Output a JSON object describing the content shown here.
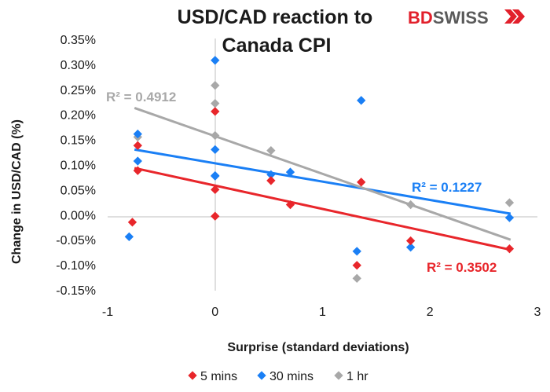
{
  "brand": {
    "bd": "BD",
    "swiss": "SWISS",
    "bd_color": "#e2202b",
    "swiss_color": "#5a5a5a"
  },
  "chart_data": {
    "type": "scatter",
    "title": "USD/CAD reaction to Canada CPI",
    "title_lines": [
      "USD/CAD reaction to",
      "Canada CPI"
    ],
    "xlabel": "Surprise (standard deviations)",
    "ylabel": "Change in USD/CAD (%)",
    "xlim": [
      -1,
      3
    ],
    "ylim": [
      -0.15,
      0.35
    ],
    "x_ticks": [
      -1,
      0,
      1,
      2,
      3
    ],
    "x_tick_labels": [
      "-1",
      "0",
      "1",
      "2",
      "3"
    ],
    "y_ticks": [
      -0.15,
      -0.1,
      -0.05,
      0.0,
      0.05,
      0.1,
      0.15,
      0.2,
      0.25,
      0.3,
      0.35
    ],
    "y_tick_labels": [
      "-0.15%",
      "-0.10%",
      "-0.05%",
      "0.00%",
      "0.05%",
      "0.10%",
      "0.15%",
      "0.20%",
      "0.25%",
      "0.30%",
      "0.35%"
    ],
    "grid": false,
    "legend_position": "bottom",
    "series": [
      {
        "name": "5 mins",
        "color": "#e8262b",
        "r2_label": "R² = 0.3502",
        "trendline": [
          [
            -0.75,
            0.093
          ],
          [
            2.75,
            -0.07
          ]
        ],
        "points": [
          [
            -0.77,
            -0.015
          ],
          [
            -0.72,
            0.138
          ],
          [
            -0.72,
            0.088
          ],
          [
            0.0,
            0.206
          ],
          [
            0.0,
            0.05
          ],
          [
            0.0,
            -0.003
          ],
          [
            0.52,
            0.068
          ],
          [
            0.7,
            0.02
          ],
          [
            1.32,
            -0.101
          ],
          [
            1.36,
            0.065
          ],
          [
            1.82,
            -0.052
          ],
          [
            2.74,
            -0.068
          ]
        ]
      },
      {
        "name": "30 mins",
        "color": "#1a7ff5",
        "r2_label": "R² = 0.1227",
        "trendline": [
          [
            -0.75,
            0.13
          ],
          [
            2.75,
            0.002
          ]
        ],
        "points": [
          [
            -0.8,
            -0.044
          ],
          [
            -0.72,
            0.161
          ],
          [
            -0.72,
            0.107
          ],
          [
            0.0,
            0.308
          ],
          [
            0.0,
            0.13
          ],
          [
            0.0,
            0.078
          ],
          [
            0.0,
            0.077
          ],
          [
            0.52,
            0.08
          ],
          [
            0.7,
            0.085
          ],
          [
            1.32,
            -0.073
          ],
          [
            1.36,
            0.228
          ],
          [
            1.82,
            -0.065
          ],
          [
            2.74,
            -0.006
          ]
        ]
      },
      {
        "name": "1 hr",
        "color": "#a8a8a8",
        "r2_label": "R² = 0.4912",
        "trendline": [
          [
            -0.75,
            0.213
          ],
          [
            2.75,
            -0.05
          ]
        ],
        "points": [
          [
            -0.72,
            0.155
          ],
          [
            0.0,
            0.258
          ],
          [
            0.0,
            0.222
          ],
          [
            0.0,
            0.158
          ],
          [
            0.52,
            0.128
          ],
          [
            1.32,
            -0.127
          ],
          [
            1.82,
            0.02
          ],
          [
            2.74,
            0.024
          ]
        ]
      }
    ]
  }
}
